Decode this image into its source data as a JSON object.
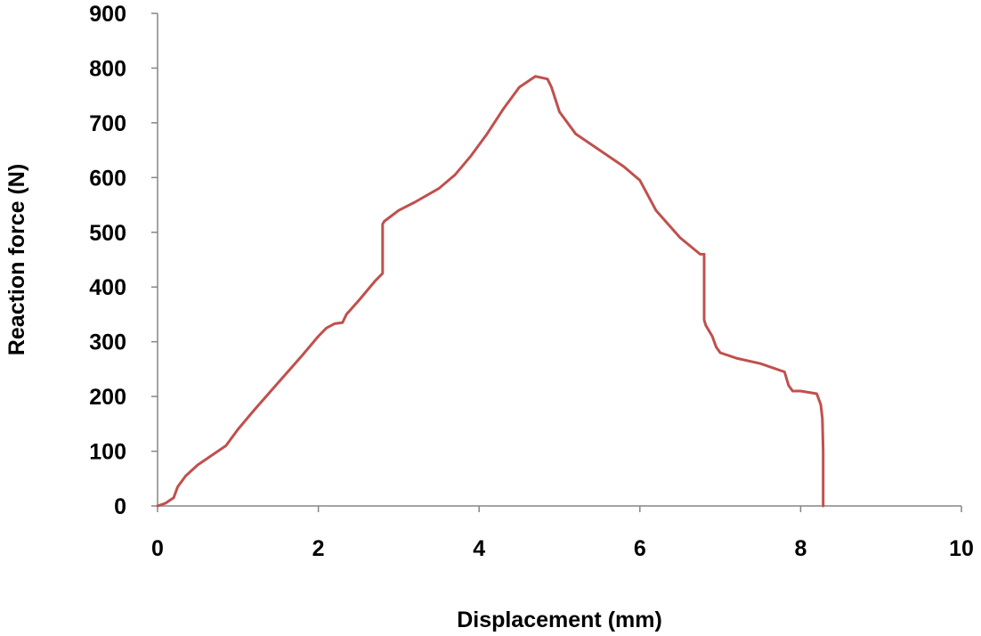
{
  "chart_data": {
    "type": "line",
    "title": "",
    "xlabel": "Displacement (mm)",
    "ylabel": "Reaction force (N)",
    "xlim": [
      0,
      10
    ],
    "ylim": [
      0,
      900
    ],
    "x_ticks": [
      0,
      2,
      4,
      6,
      8,
      10
    ],
    "y_ticks": [
      0,
      100,
      200,
      300,
      400,
      500,
      600,
      700,
      800,
      900
    ],
    "x_tick_labels": [
      "0",
      "2",
      "4",
      "6",
      "8",
      "10"
    ],
    "y_tick_labels": [
      "0",
      "100",
      "200",
      "300",
      "400",
      "500",
      "600",
      "700",
      "800",
      "900"
    ],
    "grid": false,
    "legend": "none",
    "series": [
      {
        "color": "#C0504D",
        "x": [
          0,
          0.1,
          0.2,
          0.25,
          0.35,
          0.5,
          0.7,
          0.85,
          1.0,
          1.2,
          1.5,
          1.8,
          2.0,
          2.1,
          2.2,
          2.3,
          2.35,
          2.5,
          2.7,
          2.8,
          2.8,
          2.82,
          3.0,
          3.2,
          3.5,
          3.7,
          3.9,
          4.1,
          4.3,
          4.5,
          4.7,
          4.85,
          4.9,
          5.0,
          5.2,
          5.5,
          5.8,
          6.0,
          6.2,
          6.5,
          6.75,
          6.8,
          6.8,
          6.82,
          6.9,
          6.95,
          7.0,
          7.2,
          7.5,
          7.8,
          7.85,
          7.9,
          8.0,
          8.2,
          8.25,
          8.27,
          8.28,
          8.28
        ],
        "y": [
          0,
          5,
          15,
          35,
          55,
          75,
          95,
          110,
          140,
          175,
          225,
          275,
          310,
          325,
          333,
          335,
          350,
          375,
          410,
          425,
          515,
          520,
          540,
          555,
          580,
          605,
          640,
          680,
          725,
          765,
          785,
          780,
          765,
          720,
          680,
          650,
          620,
          595,
          540,
          490,
          460,
          460,
          340,
          330,
          310,
          290,
          280,
          270,
          260,
          245,
          220,
          210,
          210,
          205,
          185,
          160,
          100,
          0
        ]
      }
    ]
  }
}
